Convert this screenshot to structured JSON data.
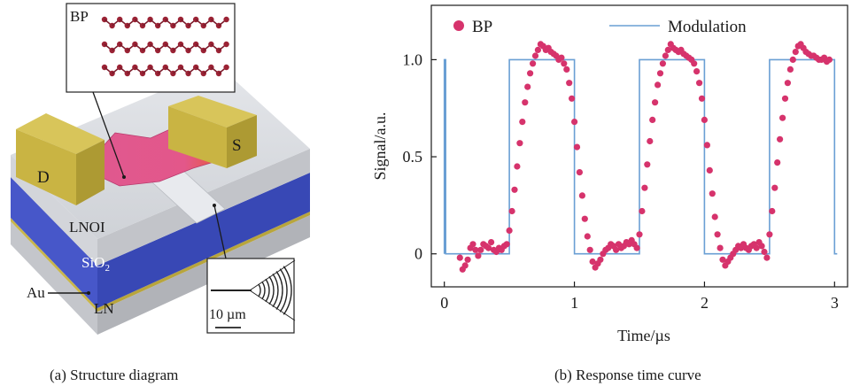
{
  "panel_a": {
    "caption": "(a) Structure diagram",
    "labels": {
      "bp": "BP",
      "drain": "D",
      "source": "S",
      "lnoi": "LNOI",
      "sio2_main": "SiO",
      "sio2_sub": "2",
      "au": "Au",
      "ln": "LN",
      "scale": "10 µm"
    },
    "colors": {
      "electrode": "#c9b443",
      "bp_flake": "#e0588f",
      "bp_hot": "#e85a3c",
      "lnoi": "#d6d8dc",
      "sio2": "#4757c9",
      "gold_layer": "#c9b64a",
      "ln": "#c9cbd0",
      "atoms": "#9b2335"
    }
  },
  "panel_b": {
    "caption": "(b) Response time curve",
    "legend": {
      "scatter": "BP",
      "line": "Modulation"
    }
  },
  "chart_data": {
    "type": "scatter",
    "xlabel": "Time/µs",
    "ylabel": "Signal/a.u.",
    "xlim": [
      -0.1,
      3.1
    ],
    "ylim": [
      -0.17,
      1.28
    ],
    "xticks": [
      0,
      1,
      2,
      3
    ],
    "xtick_labels": [
      "0",
      "1",
      "2",
      "3"
    ],
    "yticks": [
      0,
      0.5,
      1.0
    ],
    "ytick_labels": [
      "0",
      "0.5",
      "1.0"
    ],
    "grid": false,
    "legend_position": "top",
    "series": [
      {
        "name": "BP",
        "kind": "scatter",
        "color": "#d6336c",
        "x": [
          0.12,
          0.14,
          0.16,
          0.18,
          0.2,
          0.22,
          0.24,
          0.26,
          0.28,
          0.3,
          0.32,
          0.34,
          0.36,
          0.38,
          0.4,
          0.42,
          0.44,
          0.46,
          0.48,
          0.5,
          0.52,
          0.54,
          0.56,
          0.58,
          0.6,
          0.62,
          0.64,
          0.66,
          0.68,
          0.7,
          0.72,
          0.74,
          0.76,
          0.78,
          0.8,
          0.82,
          0.84,
          0.86,
          0.88,
          0.9,
          0.92,
          0.94,
          0.96,
          0.98,
          1.0,
          1.02,
          1.04,
          1.06,
          1.08,
          1.1,
          1.12,
          1.14,
          1.16,
          1.18,
          1.2,
          1.22,
          1.24,
          1.26,
          1.28,
          1.3,
          1.32,
          1.34,
          1.36,
          1.38,
          1.4,
          1.42,
          1.44,
          1.46,
          1.48,
          1.5,
          1.52,
          1.54,
          1.56,
          1.58,
          1.6,
          1.62,
          1.64,
          1.66,
          1.68,
          1.7,
          1.72,
          1.74,
          1.76,
          1.78,
          1.8,
          1.82,
          1.84,
          1.86,
          1.88,
          1.9,
          1.92,
          1.94,
          1.96,
          1.98,
          2.0,
          2.02,
          2.04,
          2.06,
          2.08,
          2.1,
          2.12,
          2.14,
          2.16,
          2.18,
          2.2,
          2.22,
          2.24,
          2.26,
          2.28,
          2.3,
          2.32,
          2.34,
          2.36,
          2.38,
          2.4,
          2.42,
          2.44,
          2.46,
          2.48,
          2.5,
          2.52,
          2.54,
          2.56,
          2.58,
          2.6,
          2.62,
          2.64,
          2.66,
          2.68,
          2.7,
          2.72,
          2.74,
          2.76,
          2.78,
          2.8,
          2.82,
          2.84,
          2.86,
          2.88,
          2.9,
          2.92,
          2.94,
          2.96
        ],
        "y": [
          -0.02,
          -0.08,
          -0.06,
          -0.03,
          0.03,
          0.05,
          0.02,
          -0.01,
          0.02,
          0.05,
          0.04,
          0.03,
          0.06,
          0.02,
          0.01,
          0.03,
          0.02,
          0.04,
          0.05,
          0.12,
          0.22,
          0.33,
          0.45,
          0.57,
          0.68,
          0.78,
          0.86,
          0.93,
          0.98,
          1.02,
          1.05,
          1.08,
          1.07,
          1.05,
          1.06,
          1.04,
          1.03,
          1.02,
          1.0,
          1.01,
          0.98,
          0.95,
          0.88,
          0.8,
          0.68,
          0.55,
          0.42,
          0.3,
          0.18,
          0.09,
          0.02,
          -0.04,
          -0.07,
          -0.05,
          -0.03,
          0.0,
          0.02,
          0.03,
          0.05,
          0.04,
          0.02,
          0.05,
          0.03,
          0.04,
          0.06,
          0.05,
          0.07,
          0.05,
          0.03,
          0.1,
          0.22,
          0.34,
          0.46,
          0.58,
          0.69,
          0.78,
          0.87,
          0.93,
          0.98,
          1.02,
          1.05,
          1.08,
          1.06,
          1.05,
          1.04,
          1.05,
          1.03,
          1.02,
          1.01,
          1.0,
          0.98,
          0.94,
          0.88,
          0.8,
          0.69,
          0.56,
          0.43,
          0.31,
          0.19,
          0.1,
          0.03,
          -0.03,
          -0.06,
          -0.04,
          -0.02,
          0.0,
          0.02,
          0.04,
          0.03,
          0.05,
          0.03,
          0.02,
          0.04,
          0.05,
          0.03,
          0.06,
          0.04,
          0.01,
          -0.02,
          0.1,
          0.22,
          0.34,
          0.47,
          0.59,
          0.7,
          0.8,
          0.88,
          0.95,
          1.0,
          1.04,
          1.07,
          1.08,
          1.06,
          1.04,
          1.03,
          1.02,
          1.02,
          1.01,
          1.0,
          1.0,
          1.01,
          0.99,
          1.0
        ]
      },
      {
        "name": "Modulation",
        "kind": "line",
        "color": "#6a9fd4",
        "x": [
          0.0,
          0.0,
          0.01,
          0.01,
          0.5,
          0.5,
          1.0,
          1.0,
          1.5,
          1.5,
          2.0,
          2.0,
          2.5,
          2.5,
          3.0,
          3.0,
          3.02
        ],
        "y": [
          0.0,
          1.0,
          1.0,
          0.0,
          0.0,
          1.0,
          1.0,
          0.0,
          0.0,
          1.0,
          1.0,
          0.0,
          0.0,
          1.0,
          1.0,
          0.0,
          0.0
        ]
      }
    ]
  }
}
